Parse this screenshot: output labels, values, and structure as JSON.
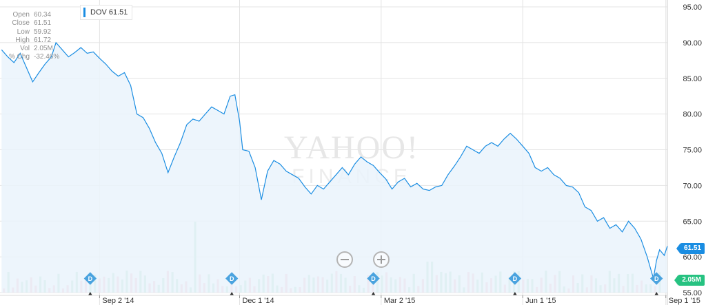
{
  "ohlc": [
    {
      "key": "Open",
      "value": "60.34"
    },
    {
      "key": "Close",
      "value": "61.51"
    },
    {
      "key": "Low",
      "value": "59.92"
    },
    {
      "key": "High",
      "value": "61.72"
    },
    {
      "key": "Vol",
      "value": "2.05M"
    },
    {
      "key": "% Chg",
      "value": "-32.46%"
    }
  ],
  "legend": {
    "label": "DOV 61.51",
    "color": "#1a8de2"
  },
  "watermark": {
    "line1": "YAHOO!",
    "line2": "FINANCE"
  },
  "tags": {
    "price": "61.51",
    "volume": "2.05M"
  },
  "icons": {
    "zoom_out": "zoom-out-icon",
    "zoom_in": "zoom-in-icon",
    "dividend": "dividend-marker-icon"
  },
  "colors": {
    "line": "#1a8de2",
    "fill": "#eaf3fc",
    "vol_up": "#a7dfc0",
    "vol_down": "#f4b6c2",
    "grid": "#e3e3e3",
    "marker": "#4aa3df"
  },
  "chart_data": {
    "type": "line",
    "series": [
      {
        "name": "DOV",
        "values": [
          {
            "x": "2014-07-01",
            "y": 89.0
          },
          {
            "x": "2014-07-05",
            "y": 88.0
          },
          {
            "x": "2014-07-09",
            "y": 87.2
          },
          {
            "x": "2014-07-13",
            "y": 88.5
          },
          {
            "x": "2014-07-17",
            "y": 86.5
          },
          {
            "x": "2014-07-21",
            "y": 84.5
          },
          {
            "x": "2014-07-25",
            "y": 85.8
          },
          {
            "x": "2014-07-29",
            "y": 87.0
          },
          {
            "x": "2014-08-02",
            "y": 88.0
          },
          {
            "x": "2014-08-05",
            "y": 90.0
          },
          {
            "x": "2014-08-09",
            "y": 89.0
          },
          {
            "x": "2014-08-13",
            "y": 88.0
          },
          {
            "x": "2014-08-17",
            "y": 88.6
          },
          {
            "x": "2014-08-21",
            "y": 89.3
          },
          {
            "x": "2014-08-25",
            "y": 88.5
          },
          {
            "x": "2014-08-29",
            "y": 88.7
          },
          {
            "x": "2014-09-02",
            "y": 87.8
          },
          {
            "x": "2014-09-06",
            "y": 87.0
          },
          {
            "x": "2014-09-10",
            "y": 86.0
          },
          {
            "x": "2014-09-14",
            "y": 85.3
          },
          {
            "x": "2014-09-18",
            "y": 85.8
          },
          {
            "x": "2014-09-22",
            "y": 84.0
          },
          {
            "x": "2014-09-26",
            "y": 80.0
          },
          {
            "x": "2014-09-30",
            "y": 79.5
          },
          {
            "x": "2014-10-04",
            "y": 78.0
          },
          {
            "x": "2014-10-08",
            "y": 76.0
          },
          {
            "x": "2014-10-12",
            "y": 74.5
          },
          {
            "x": "2014-10-16",
            "y": 71.8
          },
          {
            "x": "2014-10-20",
            "y": 74.0
          },
          {
            "x": "2014-10-24",
            "y": 76.0
          },
          {
            "x": "2014-10-28",
            "y": 78.5
          },
          {
            "x": "2014-11-01",
            "y": 79.3
          },
          {
            "x": "2014-11-05",
            "y": 79.0
          },
          {
            "x": "2014-11-09",
            "y": 80.0
          },
          {
            "x": "2014-11-13",
            "y": 81.0
          },
          {
            "x": "2014-11-17",
            "y": 80.5
          },
          {
            "x": "2014-11-21",
            "y": 80.0
          },
          {
            "x": "2014-11-25",
            "y": 82.5
          },
          {
            "x": "2014-11-28",
            "y": 82.7
          },
          {
            "x": "2014-12-01",
            "y": 79.0
          },
          {
            "x": "2014-12-03",
            "y": 75.0
          },
          {
            "x": "2014-12-07",
            "y": 74.8
          },
          {
            "x": "2014-12-11",
            "y": 72.5
          },
          {
            "x": "2014-12-15",
            "y": 68.0
          },
          {
            "x": "2014-12-19",
            "y": 72.0
          },
          {
            "x": "2014-12-23",
            "y": 73.5
          },
          {
            "x": "2014-12-27",
            "y": 73.0
          },
          {
            "x": "2014-12-31",
            "y": 72.0
          },
          {
            "x": "2015-01-04",
            "y": 71.5
          },
          {
            "x": "2015-01-08",
            "y": 71.0
          },
          {
            "x": "2015-01-12",
            "y": 69.8
          },
          {
            "x": "2015-01-16",
            "y": 68.8
          },
          {
            "x": "2015-01-20",
            "y": 70.0
          },
          {
            "x": "2015-01-24",
            "y": 69.5
          },
          {
            "x": "2015-01-28",
            "y": 70.5
          },
          {
            "x": "2015-02-01",
            "y": 71.5
          },
          {
            "x": "2015-02-05",
            "y": 72.5
          },
          {
            "x": "2015-02-09",
            "y": 71.5
          },
          {
            "x": "2015-02-13",
            "y": 73.0
          },
          {
            "x": "2015-02-17",
            "y": 74.0
          },
          {
            "x": "2015-02-21",
            "y": 73.3
          },
          {
            "x": "2015-02-25",
            "y": 72.8
          },
          {
            "x": "2015-03-01",
            "y": 71.8
          },
          {
            "x": "2015-03-05",
            "y": 70.9
          },
          {
            "x": "2015-03-09",
            "y": 69.5
          },
          {
            "x": "2015-03-13",
            "y": 70.5
          },
          {
            "x": "2015-03-17",
            "y": 71.0
          },
          {
            "x": "2015-03-21",
            "y": 69.8
          },
          {
            "x": "2015-03-25",
            "y": 70.3
          },
          {
            "x": "2015-03-29",
            "y": 69.5
          },
          {
            "x": "2015-04-02",
            "y": 69.3
          },
          {
            "x": "2015-04-06",
            "y": 69.8
          },
          {
            "x": "2015-04-10",
            "y": 70.0
          },
          {
            "x": "2015-04-14",
            "y": 71.5
          },
          {
            "x": "2015-04-18",
            "y": 72.7
          },
          {
            "x": "2015-04-22",
            "y": 74.0
          },
          {
            "x": "2015-04-26",
            "y": 75.5
          },
          {
            "x": "2015-04-30",
            "y": 75.0
          },
          {
            "x": "2015-05-04",
            "y": 74.5
          },
          {
            "x": "2015-05-08",
            "y": 75.5
          },
          {
            "x": "2015-05-12",
            "y": 76.0
          },
          {
            "x": "2015-05-16",
            "y": 75.5
          },
          {
            "x": "2015-05-20",
            "y": 76.5
          },
          {
            "x": "2015-05-24",
            "y": 77.3
          },
          {
            "x": "2015-05-28",
            "y": 76.5
          },
          {
            "x": "2015-06-01",
            "y": 75.5
          },
          {
            "x": "2015-06-05",
            "y": 74.5
          },
          {
            "x": "2015-06-09",
            "y": 72.5
          },
          {
            "x": "2015-06-13",
            "y": 72.0
          },
          {
            "x": "2015-06-17",
            "y": 72.5
          },
          {
            "x": "2015-06-21",
            "y": 71.5
          },
          {
            "x": "2015-06-25",
            "y": 71.0
          },
          {
            "x": "2015-06-29",
            "y": 70.0
          },
          {
            "x": "2015-07-03",
            "y": 69.8
          },
          {
            "x": "2015-07-07",
            "y": 69.0
          },
          {
            "x": "2015-07-11",
            "y": 67.0
          },
          {
            "x": "2015-07-15",
            "y": 66.5
          },
          {
            "x": "2015-07-19",
            "y": 65.0
          },
          {
            "x": "2015-07-23",
            "y": 65.5
          },
          {
            "x": "2015-07-27",
            "y": 64.0
          },
          {
            "x": "2015-07-31",
            "y": 64.5
          },
          {
            "x": "2015-08-04",
            "y": 63.5
          },
          {
            "x": "2015-08-08",
            "y": 65.0
          },
          {
            "x": "2015-08-12",
            "y": 64.0
          },
          {
            "x": "2015-08-16",
            "y": 62.5
          },
          {
            "x": "2015-08-20",
            "y": 60.0
          },
          {
            "x": "2015-08-24",
            "y": 57.0
          },
          {
            "x": "2015-08-26",
            "y": 59.5
          },
          {
            "x": "2015-08-28",
            "y": 61.0
          },
          {
            "x": "2015-08-31",
            "y": 60.2
          },
          {
            "x": "2015-09-02",
            "y": 61.51
          }
        ]
      }
    ],
    "volume_bars": 145,
    "dividend_dates": [
      "2014-08-27",
      "2014-11-26",
      "2015-02-25",
      "2015-05-27",
      "2015-08-26"
    ],
    "x_ticks": [
      {
        "x": "2014-09-02",
        "label": "Sep 2 '14"
      },
      {
        "x": "2014-12-01",
        "label": "Dec 1 '14"
      },
      {
        "x": "2015-03-02",
        "label": "Mar 2 '15"
      },
      {
        "x": "2015-06-01",
        "label": "Jun 1 '15"
      },
      {
        "x": "2015-09-01",
        "label": "Sep 1 '15"
      }
    ],
    "y_ticks": [
      55,
      60,
      65,
      70,
      75,
      80,
      85,
      90,
      95
    ],
    "y_tick_labels": [
      "55.00",
      "60.00",
      "65.00",
      "70.00",
      "75.00",
      "80.00",
      "85.00",
      "90.00",
      "95.00"
    ],
    "ylim": [
      55,
      95
    ],
    "xlim": [
      "2014-06-30",
      "2015-09-02"
    ],
    "grid": true
  }
}
